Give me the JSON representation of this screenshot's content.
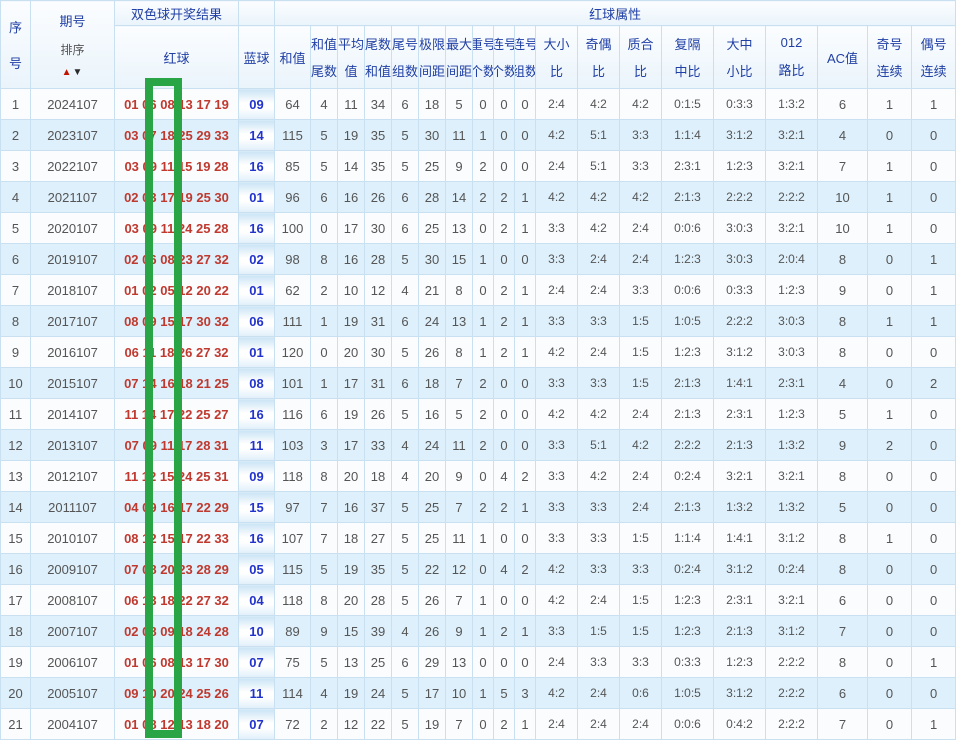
{
  "header": {
    "group_results": "双色球开奖结果",
    "group_attributes": "红球属性",
    "col_seq": [
      "序",
      "号"
    ],
    "col_period": "期号",
    "sort_label": "排序",
    "sort_up_icon": "▲",
    "sort_down_icon": "▼",
    "col_red": "红球",
    "col_blue": "蓝球",
    "col_sum": "和值",
    "cols2": [
      [
        "和值",
        "尾数"
      ],
      [
        "平均",
        "值"
      ],
      [
        "尾数",
        "和值"
      ],
      [
        "尾号",
        "组数"
      ],
      [
        "极限",
        "间距"
      ],
      [
        "最大",
        "间距"
      ],
      [
        "重号",
        "个数"
      ],
      [
        "连号",
        "个数"
      ],
      [
        "连号",
        "组数"
      ],
      [
        "大小",
        "比"
      ],
      [
        "奇偶",
        "比"
      ],
      [
        "质合",
        "比"
      ],
      [
        "复隔",
        "中比"
      ],
      [
        "大中",
        "小比"
      ],
      [
        "012",
        "路比"
      ]
    ],
    "col_ac": "AC值",
    "cols2b": [
      [
        "奇号",
        "连续"
      ],
      [
        "偶号",
        "连续"
      ]
    ]
  },
  "colors": {
    "red_ball": "#c0392f",
    "blue_ball": "#2233cc",
    "header_text": "#2140a5",
    "row_alt_bg": "#def0fb",
    "highlight_box": "#2aa546"
  },
  "rows": [
    [
      "1",
      "2024107",
      "01 06 08 13 17 19",
      "09",
      "64",
      "4",
      "11",
      "34",
      "6",
      "18",
      "5",
      "0",
      "0",
      "0",
      "2:4",
      "4:2",
      "4:2",
      "0:1:5",
      "0:3:3",
      "1:3:2",
      "6",
      "1",
      "1"
    ],
    [
      "2",
      "2023107",
      "03 07 18 25 29 33",
      "14",
      "115",
      "5",
      "19",
      "35",
      "5",
      "30",
      "11",
      "1",
      "0",
      "0",
      "4:2",
      "5:1",
      "3:3",
      "1:1:4",
      "3:1:2",
      "3:2:1",
      "4",
      "0",
      "0"
    ],
    [
      "3",
      "2022107",
      "03 09 11 15 19 28",
      "16",
      "85",
      "5",
      "14",
      "35",
      "5",
      "25",
      "9",
      "2",
      "0",
      "0",
      "2:4",
      "5:1",
      "3:3",
      "2:3:1",
      "1:2:3",
      "3:2:1",
      "7",
      "1",
      "0"
    ],
    [
      "4",
      "2021107",
      "02 03 17 19 25 30",
      "01",
      "96",
      "6",
      "16",
      "26",
      "6",
      "28",
      "14",
      "2",
      "2",
      "1",
      "4:2",
      "4:2",
      "4:2",
      "2:1:3",
      "2:2:2",
      "2:2:2",
      "10",
      "1",
      "0"
    ],
    [
      "5",
      "2020107",
      "03 09 11 24 25 28",
      "16",
      "100",
      "0",
      "17",
      "30",
      "6",
      "25",
      "13",
      "0",
      "2",
      "1",
      "3:3",
      "4:2",
      "2:4",
      "0:0:6",
      "3:0:3",
      "3:2:1",
      "10",
      "1",
      "0"
    ],
    [
      "6",
      "2019107",
      "02 06 08 23 27 32",
      "02",
      "98",
      "8",
      "16",
      "28",
      "5",
      "30",
      "15",
      "1",
      "0",
      "0",
      "3:3",
      "2:4",
      "2:4",
      "1:2:3",
      "3:0:3",
      "2:0:4",
      "8",
      "0",
      "1"
    ],
    [
      "7",
      "2018107",
      "01 02 05 12 20 22",
      "01",
      "62",
      "2",
      "10",
      "12",
      "4",
      "21",
      "8",
      "0",
      "2",
      "1",
      "2:4",
      "2:4",
      "3:3",
      "0:0:6",
      "0:3:3",
      "1:2:3",
      "9",
      "0",
      "1"
    ],
    [
      "8",
      "2017107",
      "08 09 15 17 30 32",
      "06",
      "111",
      "1",
      "19",
      "31",
      "6",
      "24",
      "13",
      "1",
      "2",
      "1",
      "3:3",
      "3:3",
      "1:5",
      "1:0:5",
      "2:2:2",
      "3:0:3",
      "8",
      "1",
      "1"
    ],
    [
      "9",
      "2016107",
      "06 11 18 26 27 32",
      "01",
      "120",
      "0",
      "20",
      "30",
      "5",
      "26",
      "8",
      "1",
      "2",
      "1",
      "4:2",
      "2:4",
      "1:5",
      "1:2:3",
      "3:1:2",
      "3:0:3",
      "8",
      "0",
      "0"
    ],
    [
      "10",
      "2015107",
      "07 14 16 18 21 25",
      "08",
      "101",
      "1",
      "17",
      "31",
      "6",
      "18",
      "7",
      "2",
      "0",
      "0",
      "3:3",
      "3:3",
      "1:5",
      "2:1:3",
      "1:4:1",
      "2:3:1",
      "4",
      "0",
      "2"
    ],
    [
      "11",
      "2014107",
      "11 14 17 22 25 27",
      "16",
      "116",
      "6",
      "19",
      "26",
      "5",
      "16",
      "5",
      "2",
      "0",
      "0",
      "4:2",
      "4:2",
      "2:4",
      "2:1:3",
      "2:3:1",
      "1:2:3",
      "5",
      "1",
      "0"
    ],
    [
      "12",
      "2013107",
      "07 09 11 17 28 31",
      "11",
      "103",
      "3",
      "17",
      "33",
      "4",
      "24",
      "11",
      "2",
      "0",
      "0",
      "3:3",
      "5:1",
      "4:2",
      "2:2:2",
      "2:1:3",
      "1:3:2",
      "9",
      "2",
      "0"
    ],
    [
      "13",
      "2012107",
      "11 12 15 24 25 31",
      "09",
      "118",
      "8",
      "20",
      "18",
      "4",
      "20",
      "9",
      "0",
      "4",
      "2",
      "3:3",
      "4:2",
      "2:4",
      "0:2:4",
      "3:2:1",
      "3:2:1",
      "8",
      "0",
      "0"
    ],
    [
      "14",
      "2011107",
      "04 09 16 17 22 29",
      "15",
      "97",
      "7",
      "16",
      "37",
      "5",
      "25",
      "7",
      "2",
      "2",
      "1",
      "3:3",
      "3:3",
      "2:4",
      "2:1:3",
      "1:3:2",
      "1:3:2",
      "5",
      "0",
      "0"
    ],
    [
      "15",
      "2010107",
      "08 12 15 17 22 33",
      "16",
      "107",
      "7",
      "18",
      "27",
      "5",
      "25",
      "11",
      "1",
      "0",
      "0",
      "3:3",
      "3:3",
      "1:5",
      "1:1:4",
      "1:4:1",
      "3:1:2",
      "8",
      "1",
      "0"
    ],
    [
      "16",
      "2009107",
      "07 08 20 23 28 29",
      "05",
      "115",
      "5",
      "19",
      "35",
      "5",
      "22",
      "12",
      "0",
      "4",
      "2",
      "4:2",
      "3:3",
      "3:3",
      "0:2:4",
      "3:1:2",
      "0:2:4",
      "8",
      "0",
      "0"
    ],
    [
      "17",
      "2008107",
      "06 13 18 22 27 32",
      "04",
      "118",
      "8",
      "20",
      "28",
      "5",
      "26",
      "7",
      "1",
      "0",
      "0",
      "4:2",
      "2:4",
      "1:5",
      "1:2:3",
      "2:3:1",
      "3:2:1",
      "6",
      "0",
      "0"
    ],
    [
      "18",
      "2007107",
      "02 08 09 18 24 28",
      "10",
      "89",
      "9",
      "15",
      "39",
      "4",
      "26",
      "9",
      "1",
      "2",
      "1",
      "3:3",
      "1:5",
      "1:5",
      "1:2:3",
      "2:1:3",
      "3:1:2",
      "7",
      "0",
      "0"
    ],
    [
      "19",
      "2006107",
      "01 06 08 13 17 30",
      "07",
      "75",
      "5",
      "13",
      "25",
      "6",
      "29",
      "13",
      "0",
      "0",
      "0",
      "2:4",
      "3:3",
      "3:3",
      "0:3:3",
      "1:2:3",
      "2:2:2",
      "8",
      "0",
      "1"
    ],
    [
      "20",
      "2005107",
      "09 10 20 24 25 26",
      "11",
      "114",
      "4",
      "19",
      "24",
      "5",
      "17",
      "10",
      "1",
      "5",
      "3",
      "4:2",
      "2:4",
      "0:6",
      "1:0:5",
      "3:1:2",
      "2:2:2",
      "6",
      "0",
      "0"
    ],
    [
      "21",
      "2004107",
      "01 08 12 13 18 20",
      "07",
      "72",
      "2",
      "12",
      "22",
      "5",
      "19",
      "7",
      "0",
      "2",
      "1",
      "2:4",
      "2:4",
      "2:4",
      "0:0:6",
      "0:4:2",
      "2:2:2",
      "7",
      "0",
      "1"
    ]
  ]
}
